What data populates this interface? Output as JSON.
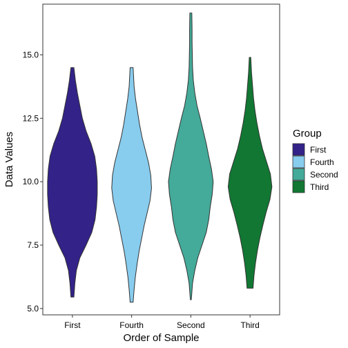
{
  "chart_data": {
    "type": "violin",
    "categories": [
      "First",
      "Fourth",
      "Second",
      "Third"
    ],
    "xlabel": "Order of Sample",
    "ylabel": "Data Values",
    "ylim": [
      4.75,
      17.0
    ],
    "yticks": [
      5.0,
      7.5,
      10.0,
      12.5,
      15.0
    ],
    "ytick_labels": [
      "5.0",
      "7.5",
      "10.0",
      "12.5",
      "15.0"
    ],
    "grid": false,
    "legend": {
      "title": "Group",
      "placement": "right",
      "entries": [
        "First",
        "Fourth",
        "Second",
        "Third"
      ]
    },
    "series": [
      {
        "name": "First",
        "color": "#332288",
        "min": 5.45,
        "max": 14.5,
        "profile": [
          [
            5.45,
            0.06
          ],
          [
            6.0,
            0.1
          ],
          [
            6.5,
            0.16
          ],
          [
            7.0,
            0.3
          ],
          [
            7.5,
            0.55
          ],
          [
            8.0,
            0.78
          ],
          [
            8.5,
            0.91
          ],
          [
            9.0,
            0.97
          ],
          [
            9.5,
            1.0
          ],
          [
            10.0,
            1.0
          ],
          [
            10.5,
            0.97
          ],
          [
            11.0,
            0.9
          ],
          [
            11.5,
            0.75
          ],
          [
            12.0,
            0.55
          ],
          [
            12.5,
            0.4
          ],
          [
            13.0,
            0.3
          ],
          [
            13.5,
            0.2
          ],
          [
            14.0,
            0.12
          ],
          [
            14.5,
            0.06
          ]
        ]
      },
      {
        "name": "Fourth",
        "color": "#88ccee",
        "min": 5.25,
        "max": 14.5,
        "profile": [
          [
            5.25,
            0.06
          ],
          [
            5.75,
            0.1
          ],
          [
            6.25,
            0.15
          ],
          [
            6.75,
            0.22
          ],
          [
            7.25,
            0.3
          ],
          [
            7.75,
            0.4
          ],
          [
            8.25,
            0.5
          ],
          [
            8.75,
            0.62
          ],
          [
            9.25,
            0.74
          ],
          [
            9.75,
            0.8
          ],
          [
            10.25,
            0.77
          ],
          [
            10.75,
            0.68
          ],
          [
            11.25,
            0.55
          ],
          [
            11.75,
            0.42
          ],
          [
            12.25,
            0.32
          ],
          [
            12.75,
            0.24
          ],
          [
            13.25,
            0.16
          ],
          [
            13.75,
            0.1
          ],
          [
            14.5,
            0.06
          ]
        ]
      },
      {
        "name": "Second",
        "color": "#44aa99",
        "min": 5.35,
        "max": 16.65,
        "profile": [
          [
            5.35,
            0.02
          ],
          [
            6.0,
            0.07
          ],
          [
            6.5,
            0.16
          ],
          [
            7.0,
            0.28
          ],
          [
            7.5,
            0.45
          ],
          [
            8.0,
            0.62
          ],
          [
            8.5,
            0.72
          ],
          [
            9.0,
            0.78
          ],
          [
            9.5,
            0.86
          ],
          [
            10.0,
            0.9
          ],
          [
            10.5,
            0.83
          ],
          [
            11.0,
            0.72
          ],
          [
            11.5,
            0.62
          ],
          [
            12.0,
            0.5
          ],
          [
            12.5,
            0.38
          ],
          [
            13.0,
            0.25
          ],
          [
            13.5,
            0.16
          ],
          [
            14.0,
            0.1
          ],
          [
            14.5,
            0.07
          ],
          [
            15.0,
            0.06
          ],
          [
            15.5,
            0.05
          ],
          [
            16.0,
            0.05
          ],
          [
            16.65,
            0.04
          ]
        ]
      },
      {
        "name": "Third",
        "color": "#117733",
        "min": 5.8,
        "max": 14.9,
        "profile": [
          [
            5.8,
            0.12
          ],
          [
            6.3,
            0.16
          ],
          [
            6.8,
            0.22
          ],
          [
            7.3,
            0.3
          ],
          [
            7.8,
            0.4
          ],
          [
            8.3,
            0.52
          ],
          [
            8.8,
            0.65
          ],
          [
            9.3,
            0.8
          ],
          [
            9.8,
            0.88
          ],
          [
            10.3,
            0.82
          ],
          [
            10.8,
            0.66
          ],
          [
            11.3,
            0.5
          ],
          [
            11.8,
            0.38
          ],
          [
            12.3,
            0.28
          ],
          [
            12.8,
            0.2
          ],
          [
            13.3,
            0.14
          ],
          [
            13.8,
            0.1
          ],
          [
            14.3,
            0.06
          ],
          [
            14.9,
            0.03
          ]
        ]
      }
    ]
  }
}
